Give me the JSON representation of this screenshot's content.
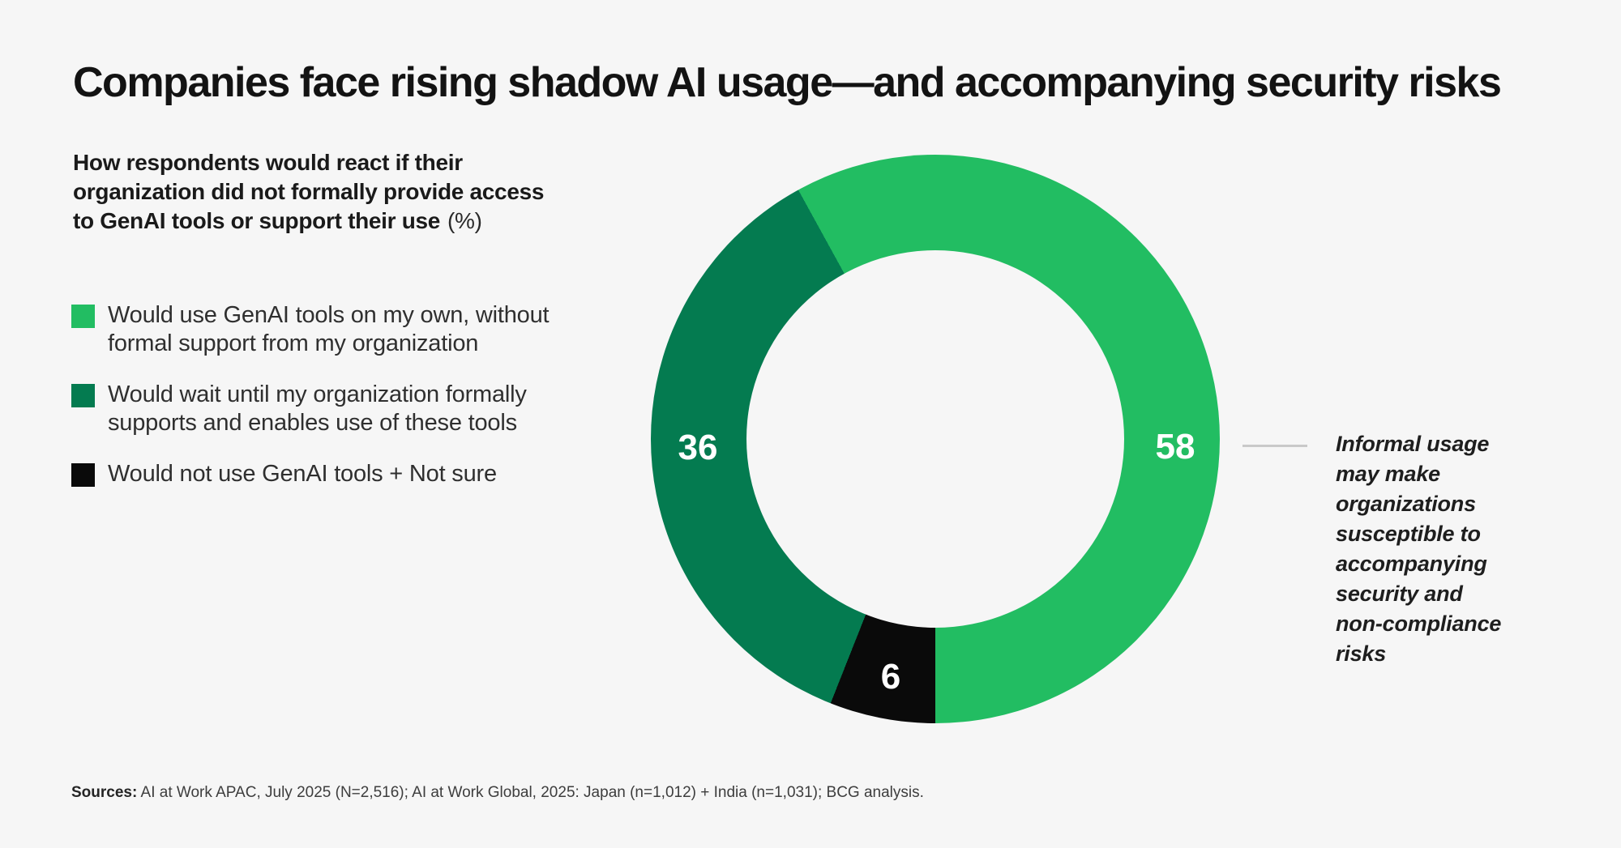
{
  "page": {
    "title": "Companies face rising shadow AI usage—and accompanying security risks",
    "background": "#f6f6f6"
  },
  "subtitle": {
    "text": "How respondents would react if their\norganization did not formally provide access\nto GenAI tools or support their use",
    "suffix": "(%)"
  },
  "legend": {
    "items": [
      {
        "label": "Would use GenAI tools on my own, without\nformal support from my organization",
        "color": "#22bd62"
      },
      {
        "label": "Would wait until my organization formally\nsupports and enables use of these tools",
        "color": "#047b50"
      },
      {
        "label": "Would not use GenAI tools + Not sure",
        "color": "#0a0a0a"
      }
    ]
  },
  "chart_data": {
    "type": "pie",
    "subtype": "donut",
    "title": "How respondents would react if their organization did not formally provide access to GenAI tools or support their use (%)",
    "unit": "%",
    "segments": [
      {
        "label": "Would use GenAI tools on my own, without formal support from my organization",
        "value": 58,
        "color": "#22bd62"
      },
      {
        "label": "Would wait until my organization formally supports and enables use of these tools",
        "value": 36,
        "color": "#047b50"
      },
      {
        "label": "Would not use GenAI tools + Not sure",
        "value": 6,
        "color": "#0a0a0a"
      }
    ],
    "hole_ratio": 0.664,
    "legend_position": "left",
    "annotation": "Informal usage\nmay make\norganizations\nsusceptible to\naccompanying\nsecurity and\nnon-compliance\nrisks",
    "annotation_color": "#1e1e1e",
    "value_label_color": "#ffffff"
  },
  "footer": {
    "sources_label": "Sources:",
    "sources_text": " AI at Work APAC, July 2025 (N=2,516); AI at Work Global, 2025: Japan (n=1,012) + India (n=1,031); BCG analysis."
  }
}
